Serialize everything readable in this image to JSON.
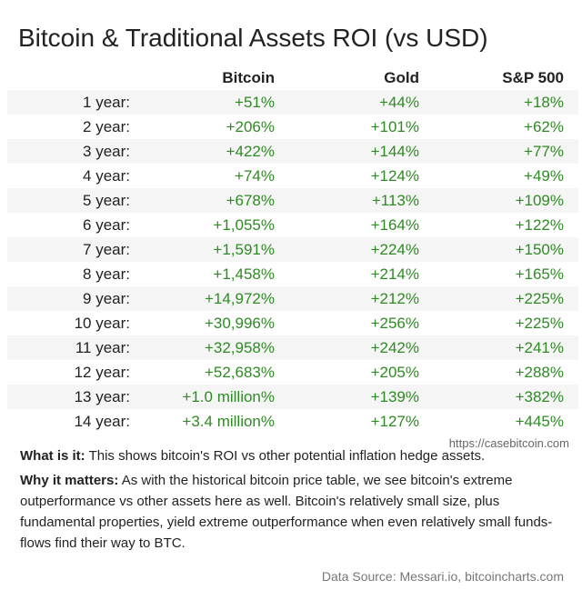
{
  "title": "Bitcoin & Traditional Assets ROI (vs USD)",
  "columns": [
    "Bitcoin",
    "Gold",
    "S&P 500"
  ],
  "rows": [
    {
      "label": "1 year:",
      "bitcoin": "+51%",
      "gold": "+44%",
      "sp500": "+18%"
    },
    {
      "label": "2 year:",
      "bitcoin": "+206%",
      "gold": "+101%",
      "sp500": "+62%"
    },
    {
      "label": "3 year:",
      "bitcoin": "+422%",
      "gold": "+144%",
      "sp500": "+77%"
    },
    {
      "label": "4 year:",
      "bitcoin": "+74%",
      "gold": "+124%",
      "sp500": "+49%"
    },
    {
      "label": "5 year:",
      "bitcoin": "+678%",
      "gold": "+113%",
      "sp500": "+109%"
    },
    {
      "label": "6 year:",
      "bitcoin": "+1,055%",
      "gold": "+164%",
      "sp500": "+122%"
    },
    {
      "label": "7 year:",
      "bitcoin": "+1,591%",
      "gold": "+224%",
      "sp500": "+150%"
    },
    {
      "label": "8 year:",
      "bitcoin": "+1,458%",
      "gold": "+214%",
      "sp500": "+165%"
    },
    {
      "label": "9 year:",
      "bitcoin": "+14,972%",
      "gold": "+212%",
      "sp500": "+225%"
    },
    {
      "label": "10 year:",
      "bitcoin": "+30,996%",
      "gold": "+256%",
      "sp500": "+225%"
    },
    {
      "label": "11 year:",
      "bitcoin": "+32,958%",
      "gold": "+242%",
      "sp500": "+241%"
    },
    {
      "label": "12 year:",
      "bitcoin": "+52,683%",
      "gold": "+205%",
      "sp500": "+288%"
    },
    {
      "label": "13 year:",
      "bitcoin": "+1.0 million%",
      "gold": "+139%",
      "sp500": "+382%"
    },
    {
      "label": "14 year:",
      "bitcoin": "+3.4 million%",
      "gold": "+127%",
      "sp500": "+445%"
    }
  ],
  "watermark": "https://casebitcoin.com",
  "what_is_it": {
    "label": "What is it:",
    "text": " This shows bitcoin's ROI vs other potential inflation hedge assets."
  },
  "why_it_matters": {
    "label": "Why it matters:",
    "text": " As with the historical bitcoin price table, we see bitcoin's extreme outperformance vs other assets here as well. Bitcoin's relatively small size, plus fundamental properties, yield extreme outperformance when even relatively small funds-flows find their way to BTC."
  },
  "source": "Data Source: Messari.io, bitcoincharts.com",
  "colors": {
    "positive": "#2e8b23",
    "row_stripe": "#f5f5f5",
    "text": "#222222"
  }
}
